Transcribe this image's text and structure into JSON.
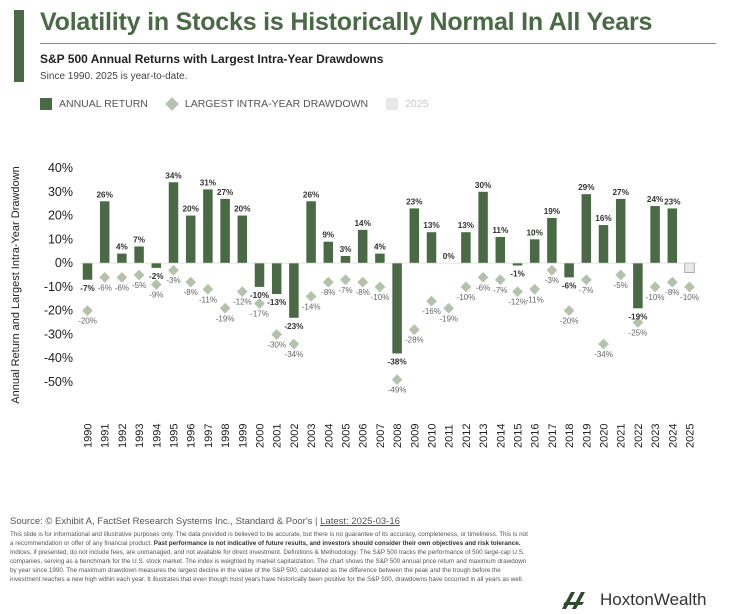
{
  "header": {
    "title": "Volatility in Stocks is Historically Normal In All Years",
    "subtitle": "S&P 500 Annual Returns with Largest Intra-Year Drawdowns",
    "note": "Since 1990. 2025 is year-to-date."
  },
  "legend": {
    "annual_return": "ANNUAL RETURN",
    "drawdown": "LARGEST INTRA-YEAR DRAWDOWN",
    "ytd": "2025"
  },
  "colors": {
    "bar": "#4a6a45",
    "drawdown": "#b5c1ad",
    "ytd_bar": "#e8e8e8",
    "title": "#4a6a45"
  },
  "chart_data": {
    "type": "bar",
    "ylabel": "Annual Return and Largest Intra-Year Drawdown",
    "ylim": [
      -50,
      40
    ],
    "yticks": [
      "40%",
      "30%",
      "20%",
      "10%",
      "0%",
      "-10%",
      "-20%",
      "-30%",
      "-40%",
      "-50%"
    ],
    "grid": false,
    "legend_position": "top-left",
    "categories": [
      "1990",
      "1991",
      "1992",
      "1993",
      "1994",
      "1995",
      "1996",
      "1997",
      "1998",
      "1999",
      "2000",
      "2001",
      "2002",
      "2003",
      "2004",
      "2005",
      "2006",
      "2007",
      "2008",
      "2009",
      "2010",
      "2011",
      "2012",
      "2013",
      "2014",
      "2015",
      "2016",
      "2017",
      "2018",
      "2019",
      "2020",
      "2021",
      "2022",
      "2023",
      "2024",
      "2025"
    ],
    "series": [
      {
        "name": "ANNUAL RETURN",
        "type": "bar",
        "values": [
          -7,
          26,
          4,
          7,
          -2,
          34,
          20,
          31,
          27,
          20,
          -10,
          -13,
          -23,
          26,
          9,
          3,
          14,
          4,
          -38,
          23,
          13,
          0,
          13,
          30,
          11,
          -1,
          10,
          19,
          -6,
          29,
          16,
          27,
          -19,
          24,
          23,
          -4
        ],
        "labels": [
          "-7%",
          "26%",
          "4%",
          "7%",
          "-2%",
          "34%",
          "20%",
          "31%",
          "27%",
          "20%",
          "-10%",
          "-13%",
          "-23%",
          "26%",
          "9%",
          "3%",
          "14%",
          "4%",
          "-38%",
          "23%",
          "13%",
          "0%",
          "13%",
          "30%",
          "11%",
          "-1%",
          "10%",
          "19%",
          "-6%",
          "29%",
          "16%",
          "27%",
          "-19%",
          "24%",
          "23%",
          ""
        ]
      },
      {
        "name": "LARGEST INTRA-YEAR DRAWDOWN",
        "type": "scatter",
        "values": [
          -20,
          -6,
          -6,
          -5,
          -9,
          -3,
          -8,
          -11,
          -19,
          -12,
          -17,
          -30,
          -34,
          -14,
          -8,
          -7,
          -8,
          -10,
          -49,
          -28,
          -16,
          -19,
          -10,
          -6,
          -7,
          -12,
          -11,
          -3,
          -20,
          -7,
          -34,
          -5,
          -25,
          -10,
          -8,
          -10
        ],
        "labels": [
          "-20%",
          "-6%",
          "-6%",
          "-5%",
          "-9%",
          "-3%",
          "-8%",
          "-11%",
          "-19%",
          "-12%",
          "-17%",
          "-30%",
          "-34%",
          "-14%",
          "-8%",
          "-7%",
          "-8%",
          "-10%",
          "-49%",
          "-28%",
          "-16%",
          "-19%",
          "-10%",
          "-6%",
          "-7%",
          "-12%",
          "-11%",
          "-3%",
          "-20%",
          "-7%",
          "-34%",
          "-5%",
          "-25%",
          "-10%",
          "-8%",
          "-10%"
        ]
      }
    ]
  },
  "footer": {
    "source_prefix": "Source: © Exhibit A, FactSet Research Systems Inc., Standard & Poor's | ",
    "source_latest": "Latest: 2025-03-16",
    "disclaimer_1": "This slide is for informational and illustrative purposes only. The data provided is believed to be accurate, but there is no guarantee of its accuracy, completeness, or timeliness. This is not a recommendation or offer of any financial product. ",
    "disclaimer_bold": "Past performance is not indicative of future results, and investors should consider their own objectives and risk tolerance.",
    "disclaimer_2": " Indices, if presented, do not include fees, are unmanaged, and not available for direct investment. Definitions & Methodology: The S&P 500 tracks the performance of 500 large-cap U.S. companies, serving as a benchmark for the U.S. stock market. The index is weighted by market capitalization. The chart shows the S&P 500 annual price return and maximum drawdown by year since 1990. The maximum drawdown measures the largest decline in the value of the S&P 500, calculated as the difference between the peak and the trough before the investment reaches a new high within each year. It illustrates that even though most years have historically been positive for the S&P 500, drawdowns have occurred in all years as well.",
    "logo_text": "HoxtonWealth"
  }
}
